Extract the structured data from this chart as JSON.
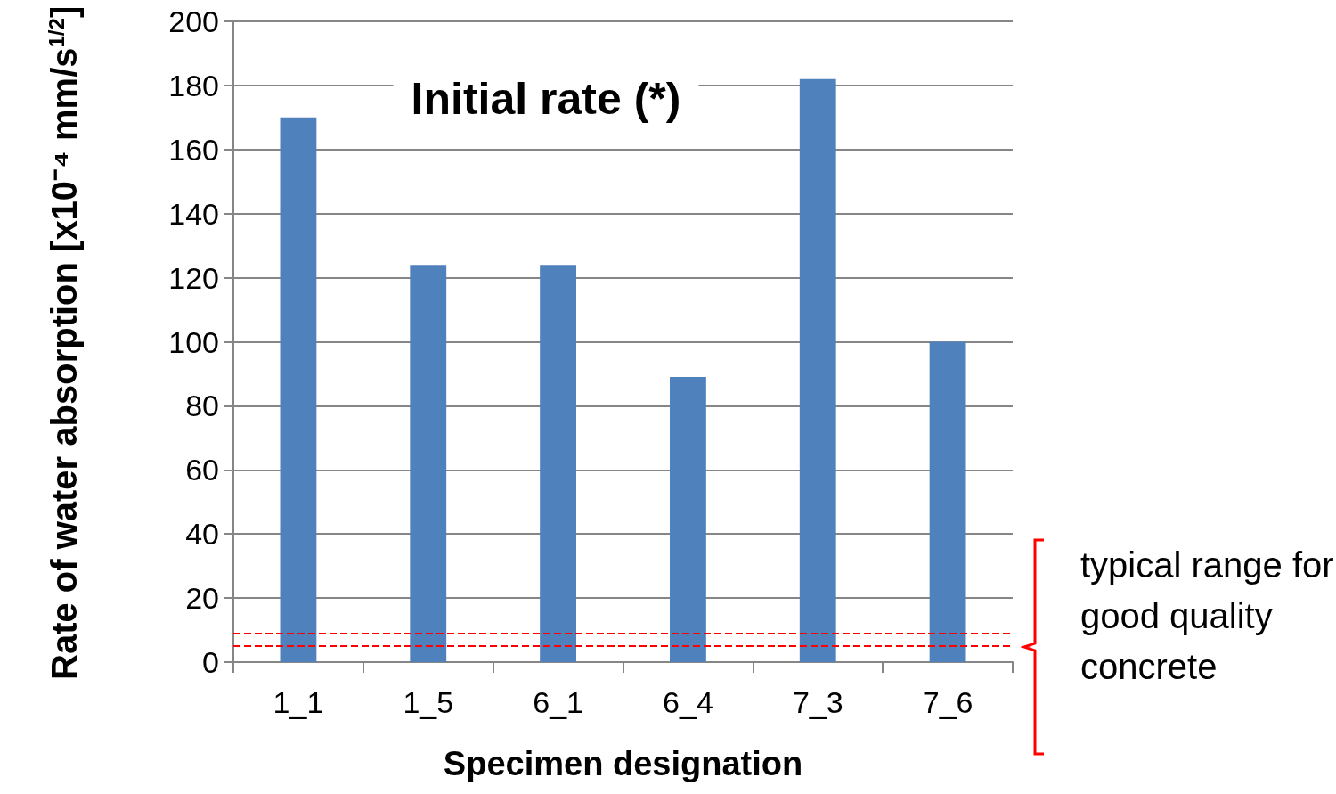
{
  "chart_data": {
    "type": "bar",
    "title": "Initial rate (*)",
    "xlabel": "Specimen designation",
    "ylabel": "Rate of water absorption [x10⁻⁴ mm/s$^{1/2}$]",
    "categories": [
      "1_1",
      "1_5",
      "6_1",
      "6_4",
      "7_3",
      "7_6"
    ],
    "values": [
      170,
      124,
      124,
      89,
      182,
      100
    ],
    "color": "#4f81bd",
    "ylim": [
      0,
      200
    ],
    "yticks": [
      0,
      20,
      40,
      60,
      80,
      100,
      120,
      140,
      160,
      180,
      200
    ],
    "grid": "y",
    "ref_lines": [
      {
        "axis": "y",
        "value": 9,
        "color": "#ff0000",
        "line_style": "dashed"
      },
      {
        "axis": "y",
        "value": 5,
        "color": "#ff0000",
        "line_style": "dashed"
      }
    ],
    "annotations": [
      "typical range for good quality concrete"
    ]
  }
}
